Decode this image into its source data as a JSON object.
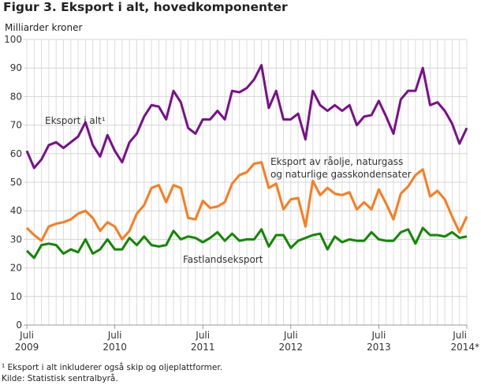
{
  "chart_data": {
    "type": "line",
    "title": "Figur 3. Eksport i alt, hovedkomponenter",
    "ylabel": "Milliarder kroner",
    "ylim": [
      0,
      100
    ],
    "yticks": [
      0,
      10,
      20,
      30,
      40,
      50,
      60,
      70,
      80,
      90,
      100
    ],
    "grid": true,
    "x_start": "2009-07",
    "x_end": "2014-07",
    "x_frequency": "monthly",
    "xtick_labels": [
      {
        "month": "Juli",
        "year": "2009"
      },
      {
        "month": "Juli",
        "year": "2010"
      },
      {
        "month": "Juli",
        "year": "2011"
      },
      {
        "month": "Juli",
        "year": "2012"
      },
      {
        "month": "Juli",
        "year": "2013"
      },
      {
        "month": "Juli",
        "year": "2014*"
      }
    ],
    "series": [
      {
        "name": "Eksport i alt¹",
        "color": "#7b0d8e",
        "values": [
          61,
          55,
          58,
          63,
          64,
          62,
          64,
          66,
          71,
          63,
          59,
          66.5,
          61,
          57,
          64,
          67,
          73,
          77,
          76.5,
          72,
          82,
          78,
          69,
          67,
          72,
          72,
          75,
          72,
          82,
          81.5,
          83,
          86,
          91,
          76,
          82,
          72,
          72,
          74,
          65,
          82,
          77,
          75,
          77,
          75,
          77,
          70,
          73,
          73.5,
          78.5,
          73,
          67,
          79,
          82,
          82,
          90,
          77,
          78,
          75,
          70.5,
          63.5,
          69
        ]
      },
      {
        "name": "Eksport av råolje, naturgass og naturlige gasskondensater",
        "label_lines": [
          "Eksport av råolje, naturgass",
          "og naturlige gasskondensater"
        ],
        "color": "#ff7a1a",
        "values": [
          34,
          31.5,
          29.5,
          34.5,
          35.5,
          36,
          37,
          39,
          40,
          37.5,
          33,
          36,
          34.5,
          30,
          33,
          39,
          42,
          48,
          49,
          43,
          49,
          48,
          37.5,
          37,
          43.5,
          41,
          41.5,
          43,
          49.5,
          52.5,
          53.5,
          56.5,
          57,
          48,
          49.5,
          40.5,
          44,
          44.5,
          34.5,
          50.5,
          45.5,
          48,
          46,
          45.5,
          46.5,
          40.5,
          43,
          40.5,
          47.5,
          42.5,
          37,
          46,
          48.5,
          52.5,
          54.5,
          45,
          47,
          44,
          38,
          32.5,
          38
        ]
      },
      {
        "name": "Fastlandseksport",
        "color": "#0f8a00",
        "values": [
          26,
          23.5,
          28,
          28.5,
          28,
          25,
          26.5,
          25.5,
          30,
          25,
          26.5,
          30,
          26.5,
          26.5,
          30.5,
          28,
          31,
          28,
          27.5,
          28,
          33,
          30,
          31,
          30.5,
          29,
          30.5,
          32.5,
          29.5,
          32,
          29.5,
          30,
          30,
          33.5,
          27.5,
          31.5,
          31.5,
          27,
          29.5,
          30.5,
          31.5,
          32,
          26.5,
          31,
          29,
          30,
          29.5,
          29.5,
          32.5,
          30,
          29.5,
          29.5,
          32.5,
          33.5,
          28.5,
          34,
          31.5,
          31.5,
          31,
          32.5,
          30.5,
          31
        ]
      }
    ]
  },
  "footnotes": [
    "¹ Eksport i alt inkluderer også skip og oljeplattformer.",
    "Kilde: Statistisk sentralbyrå."
  ]
}
